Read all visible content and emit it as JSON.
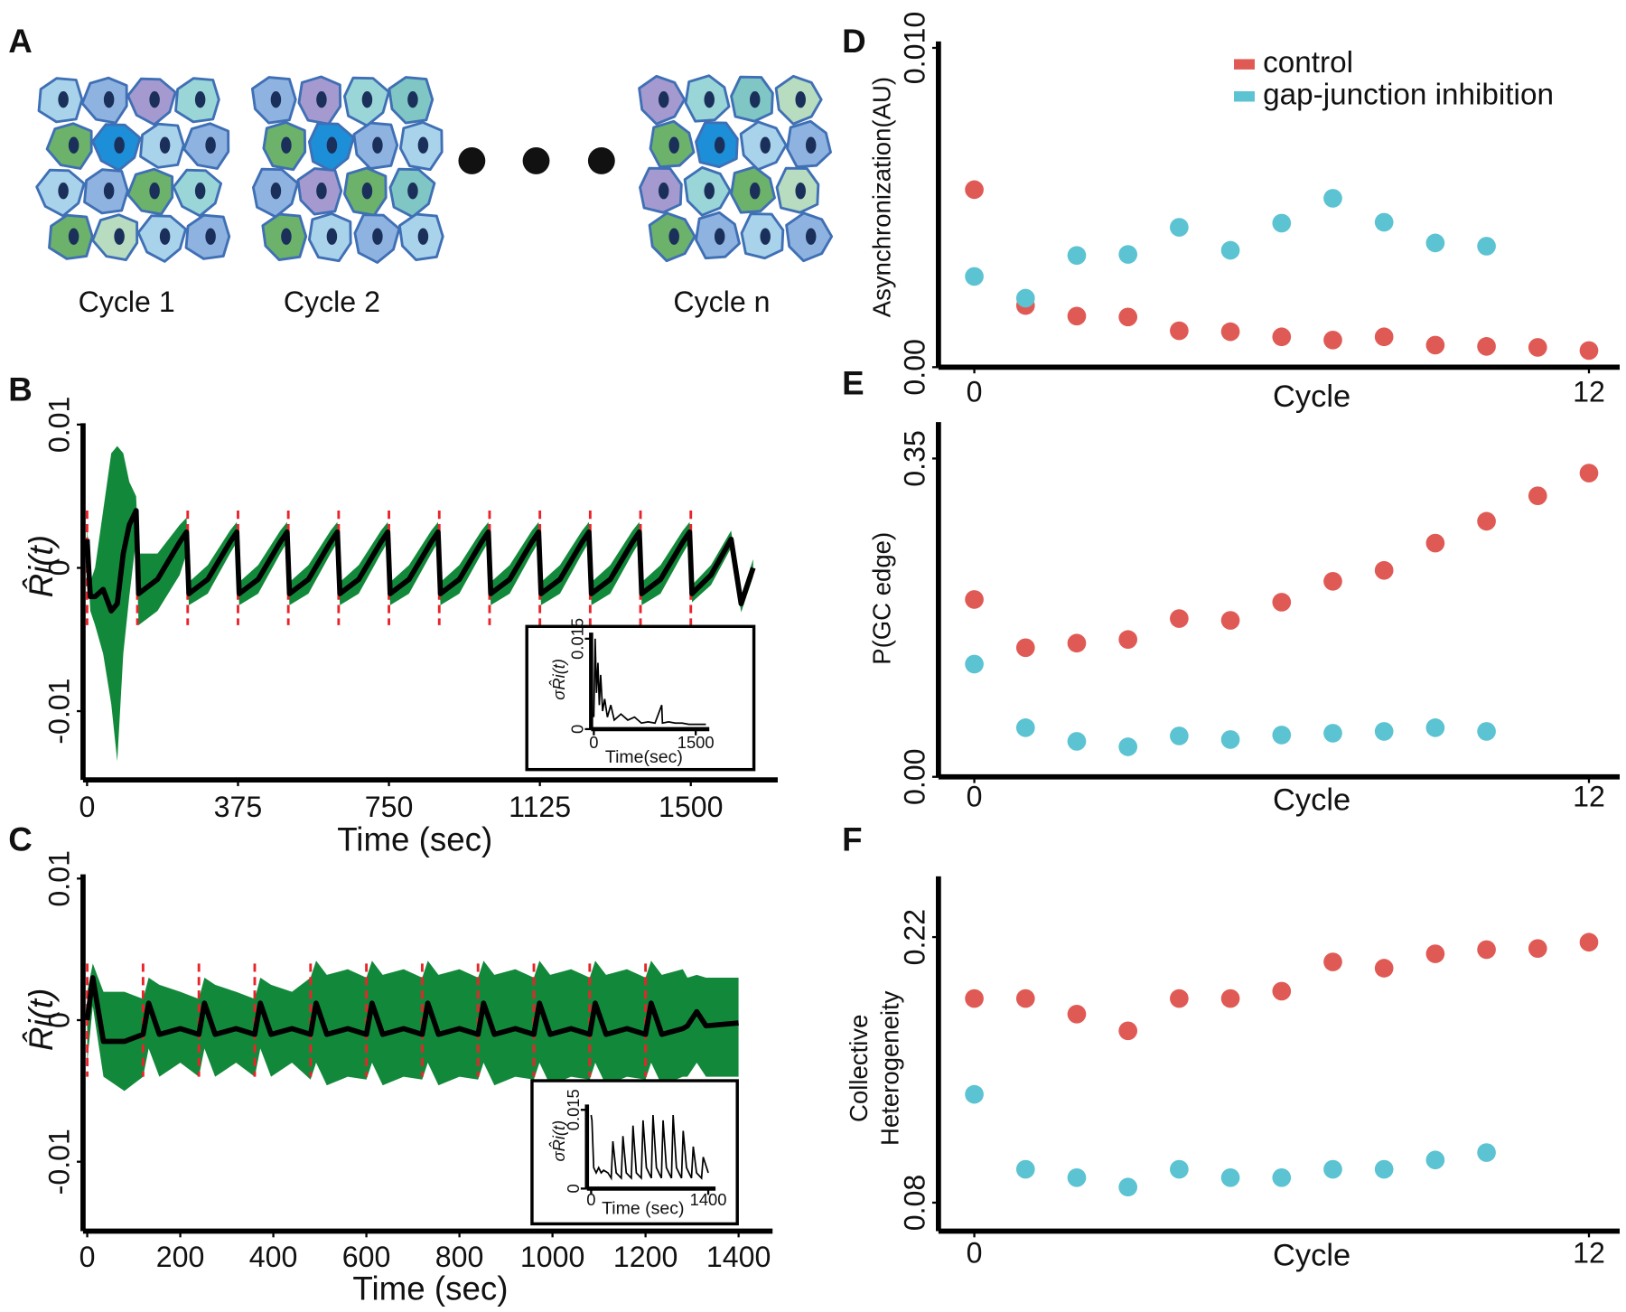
{
  "panel_a": {
    "label": "A",
    "cycle_labels": [
      "Cycle 1",
      "Cycle 2",
      "Cycle n"
    ]
  },
  "chart_data": [
    {
      "type": "line",
      "panel": "B",
      "ylabel": "R̂i(t)",
      "xlabel": "Time (sec)",
      "xlim": [
        -10,
        1716
      ],
      "ylim": [
        -0.0148,
        0.0101
      ],
      "xticks": [
        0,
        375,
        750,
        1125,
        1500
      ],
      "yticks": [
        -0.01,
        0,
        0.01
      ],
      "x": [
        0,
        8,
        20,
        40,
        60,
        75,
        90,
        105,
        122,
        128,
        175,
        230,
        247,
        253,
        300,
        355,
        372,
        378,
        425,
        480,
        497,
        503,
        550,
        605,
        622,
        628,
        675,
        730,
        747,
        753,
        800,
        855,
        872,
        878,
        925,
        980,
        997,
        1003,
        1050,
        1105,
        1122,
        1128,
        1175,
        1230,
        1247,
        1253,
        1300,
        1355,
        1372,
        1378,
        1425,
        1480,
        1497,
        1503,
        1550,
        1600,
        1625,
        1655
      ],
      "values": [
        0.002,
        -0.002,
        -0.002,
        -0.0015,
        -0.003,
        -0.0025,
        0.001,
        0.003,
        0.004,
        -0.0018,
        -0.0008,
        0.0018,
        0.0025,
        -0.0018,
        -0.0008,
        0.0018,
        0.0025,
        -0.0018,
        -0.0008,
        0.0018,
        0.0025,
        -0.0018,
        -0.0008,
        0.0018,
        0.0025,
        -0.0018,
        -0.0008,
        0.0018,
        0.0025,
        -0.0018,
        -0.0008,
        0.0018,
        0.0025,
        -0.0018,
        -0.0008,
        0.0018,
        0.0025,
        -0.0018,
        -0.0008,
        0.0018,
        0.0025,
        -0.0018,
        -0.0008,
        0.0018,
        0.0025,
        -0.0018,
        -0.0008,
        0.0018,
        0.0025,
        -0.0018,
        -0.0008,
        0.0018,
        0.0025,
        -0.0018,
        -0.0005,
        0.002,
        -0.0025,
        0
      ],
      "color": "#000000",
      "band": {
        "color": "#12893a",
        "upper": [
          0.003,
          -0.001,
          0,
          0.004,
          0.008,
          0.0085,
          0.008,
          0.006,
          0.005,
          0.001,
          0.001,
          0.003,
          0.0035,
          -0.001,
          0.0002,
          0.0026,
          0.0032,
          -0.001,
          0.0002,
          0.0026,
          0.0032,
          -0.001,
          0.0002,
          0.0026,
          0.0032,
          -0.001,
          0.0002,
          0.0026,
          0.0032,
          -0.001,
          0.0002,
          0.0026,
          0.0032,
          -0.001,
          0.0002,
          0.0026,
          0.0032,
          -0.001,
          0.0002,
          0.0026,
          0.0032,
          -0.001,
          0.0002,
          0.0026,
          0.0032,
          -0.001,
          0.0002,
          0.0026,
          0.0032,
          -0.001,
          0.0002,
          0.0026,
          0.0032,
          -0.0012,
          0.0002,
          0.0026,
          -0.0019,
          0.0006
        ],
        "lower": [
          0.001,
          -0.003,
          -0.004,
          -0.006,
          -0.0095,
          -0.0135,
          -0.006,
          -0.002,
          0.002,
          -0.004,
          -0.003,
          -0.0005,
          0.001,
          -0.0026,
          -0.0018,
          0.001,
          0.0018,
          -0.0026,
          -0.0018,
          0.001,
          0.0018,
          -0.0026,
          -0.0018,
          0.001,
          0.0018,
          -0.0026,
          -0.0018,
          0.001,
          0.0018,
          -0.0026,
          -0.0018,
          0.001,
          0.0018,
          -0.0026,
          -0.0018,
          0.001,
          0.0018,
          -0.0026,
          -0.0018,
          0.001,
          0.0018,
          -0.0026,
          -0.0018,
          0.001,
          0.0018,
          -0.0026,
          -0.0018,
          0.001,
          0.0018,
          -0.0026,
          -0.0018,
          0.001,
          0.0018,
          -0.0024,
          -0.0012,
          0.0014,
          -0.0031,
          -0.0006
        ]
      },
      "cycle_starts": [
        0,
        125,
        250,
        375,
        500,
        625,
        750,
        875,
        1000,
        1125,
        1250,
        1375,
        1500
      ],
      "cycle_color": "#e8242a",
      "inset": {
        "xlabel": "Time(sec)",
        "ylabel": "σR̂i(t)",
        "xlim": [
          -40,
          1700
        ],
        "ylim": [
          0,
          0.016
        ],
        "xticks": [
          0,
          1500
        ],
        "yticks": [
          0,
          0.015
        ],
        "x": [
          0,
          20,
          40,
          60,
          80,
          100,
          130,
          160,
          200,
          250,
          300,
          400,
          500,
          600,
          700,
          800,
          900,
          1000,
          1010,
          1100,
          1200,
          1300,
          1400,
          1500,
          1650
        ],
        "values": [
          0.002,
          0.015,
          0.006,
          0.011,
          0.004,
          0.009,
          0.003,
          0.005,
          0.002,
          0.004,
          0.0015,
          0.0025,
          0.0015,
          0.002,
          0.001,
          0.0012,
          0.001,
          0.004,
          0.001,
          0.0012,
          0.001,
          0.001,
          0.0008,
          0.0008,
          0.0008
        ]
      }
    },
    {
      "type": "line",
      "panel": "C",
      "ylabel": "R̂i(t)",
      "xlabel": "Time (sec)",
      "xlim": [
        -9,
        1473
      ],
      "ylim": [
        -0.0149,
        0.0103
      ],
      "xticks": [
        0,
        200,
        400,
        600,
        800,
        1000,
        1200,
        1400
      ],
      "yticks": [
        -0.01,
        0,
        0.01
      ],
      "x": [
        0,
        12,
        35,
        80,
        120,
        132,
        155,
        200,
        240,
        252,
        275,
        320,
        360,
        372,
        395,
        440,
        480,
        492,
        515,
        560,
        600,
        612,
        635,
        680,
        720,
        732,
        755,
        800,
        840,
        852,
        875,
        920,
        960,
        972,
        995,
        1040,
        1080,
        1092,
        1115,
        1160,
        1200,
        1212,
        1235,
        1280,
        1290,
        1310,
        1330,
        1400
      ],
      "values": [
        0,
        0.003,
        -0.0015,
        -0.0015,
        -0.001,
        0.0012,
        -0.001,
        -0.0006,
        -0.001,
        0.0012,
        -0.001,
        -0.0006,
        -0.001,
        0.0012,
        -0.001,
        -0.0006,
        -0.001,
        0.0012,
        -0.001,
        -0.0006,
        -0.001,
        0.0012,
        -0.001,
        -0.0006,
        -0.001,
        0.0012,
        -0.001,
        -0.0006,
        -0.001,
        0.0012,
        -0.001,
        -0.0006,
        -0.001,
        0.0012,
        -0.001,
        -0.0006,
        -0.001,
        0.0012,
        -0.001,
        -0.0006,
        -0.001,
        0.0012,
        -0.001,
        -0.0006,
        -0.0004,
        0.0006,
        -0.0004,
        -0.0002
      ],
      "color": "#000000",
      "band": {
        "color": "#12893a",
        "upper": [
          0.002,
          0.004,
          0.002,
          0.002,
          0.0015,
          0.003,
          0.0025,
          0.002,
          0.0015,
          0.003,
          0.0025,
          0.002,
          0.0015,
          0.003,
          0.0025,
          0.002,
          0.003,
          0.0042,
          0.0032,
          0.0036,
          0.003,
          0.0042,
          0.0032,
          0.0036,
          0.003,
          0.0042,
          0.0032,
          0.0036,
          0.003,
          0.0042,
          0.0032,
          0.0036,
          0.003,
          0.0042,
          0.0032,
          0.0036,
          0.003,
          0.0042,
          0.0032,
          0.0036,
          0.003,
          0.0042,
          0.0032,
          0.0036,
          0.003,
          0.0032,
          0.003,
          0.003
        ],
        "lower": [
          -0.003,
          0.001,
          -0.004,
          -0.005,
          -0.004,
          -0.002,
          -0.004,
          -0.003,
          -0.004,
          -0.002,
          -0.004,
          -0.003,
          -0.004,
          -0.002,
          -0.004,
          -0.003,
          -0.0042,
          -0.003,
          -0.0046,
          -0.004,
          -0.0042,
          -0.003,
          -0.0046,
          -0.004,
          -0.0042,
          -0.003,
          -0.0046,
          -0.004,
          -0.0042,
          -0.003,
          -0.0046,
          -0.004,
          -0.0042,
          -0.003,
          -0.0046,
          -0.004,
          -0.0042,
          -0.003,
          -0.0046,
          -0.004,
          -0.0042,
          -0.003,
          -0.0046,
          -0.004,
          -0.004,
          -0.003,
          -0.004,
          -0.004
        ]
      },
      "cycle_starts": [
        0,
        120,
        240,
        360,
        480,
        600,
        720,
        840,
        960,
        1080,
        1200
      ],
      "cycle_color": "#e8242a",
      "inset": {
        "xlabel": "Time (sec)",
        "ylabel": "σR̂i(t)",
        "xlim": [
          -50,
          1487
        ],
        "ylim": [
          0,
          0.016
        ],
        "xticks": [
          0,
          1400
        ],
        "yticks": [
          0,
          0.015
        ],
        "x": [
          0,
          10,
          30,
          60,
          90,
          120,
          150,
          200,
          240,
          260,
          300,
          360,
          380,
          420,
          480,
          500,
          540,
          600,
          620,
          660,
          720,
          740,
          780,
          840,
          860,
          900,
          960,
          980,
          1020,
          1080,
          1100,
          1140,
          1200,
          1220,
          1260,
          1320,
          1340,
          1400
        ],
        "values": [
          0.014,
          0.013,
          0.004,
          0.003,
          0.004,
          0.003,
          0.0035,
          0.003,
          0.002,
          0.009,
          0.003,
          0.002,
          0.01,
          0.003,
          0.002,
          0.012,
          0.003,
          0.002,
          0.013,
          0.004,
          0.002,
          0.014,
          0.004,
          0.002,
          0.013,
          0.004,
          0.002,
          0.014,
          0.004,
          0.002,
          0.011,
          0.004,
          0.002,
          0.008,
          0.003,
          0.002,
          0.006,
          0.003
        ]
      }
    },
    {
      "type": "scatter",
      "panel": "D",
      "ylabel": "Asynchronization(AU)",
      "xlabel": "Cycle",
      "xlim": [
        -0.7,
        12.6
      ],
      "ylim": [
        0,
        0.0102
      ],
      "xticks": [
        0,
        12
      ],
      "yticks": [
        {
          "value": 0,
          "label": "0.00"
        },
        {
          "value": 0.01,
          "label": "0.010"
        }
      ],
      "legend": "top-right",
      "series": [
        {
          "name": "control",
          "color": "#e05a55",
          "x": [
            0,
            1,
            2,
            3,
            4,
            5,
            6,
            7,
            8,
            9,
            10,
            11,
            12
          ],
          "values": [
            0.00556,
            0.00193,
            0.0016,
            0.00157,
            0.00114,
            0.00111,
            0.00095,
            0.00085,
            0.00095,
            0.00069,
            0.00065,
            0.00062,
            0.00052
          ]
        },
        {
          "name": "gap-junction inhibition",
          "color": "#5bc3d2",
          "x": [
            0,
            1,
            2,
            3,
            4,
            5,
            6,
            7,
            8,
            9,
            10
          ],
          "values": [
            0.00284,
            0.00216,
            0.0035,
            0.00353,
            0.00438,
            0.00366,
            0.00451,
            0.00529,
            0.00454,
            0.00389,
            0.00379
          ]
        }
      ]
    },
    {
      "type": "scatter",
      "panel": "E",
      "ylabel": "P(GC edge)",
      "xlabel": "Cycle",
      "xlim": [
        -0.7,
        12.6
      ],
      "ylim": [
        0,
        0.39
      ],
      "xticks": [
        0,
        12
      ],
      "yticks": [
        {
          "value": 0,
          "label": "0.00"
        },
        0.35
      ],
      "series": [
        {
          "color": "#e05a55",
          "x": [
            0,
            1,
            2,
            3,
            4,
            5,
            6,
            7,
            8,
            9,
            10,
            11,
            12
          ],
          "values": [
            0.195,
            0.142,
            0.147,
            0.151,
            0.174,
            0.172,
            0.192,
            0.215,
            0.227,
            0.257,
            0.281,
            0.309,
            0.334
          ]
        },
        {
          "color": "#5bc3d2",
          "x": [
            0,
            1,
            2,
            3,
            4,
            5,
            6,
            7,
            8,
            9,
            10
          ],
          "values": [
            0.124,
            0.054,
            0.039,
            0.033,
            0.045,
            0.041,
            0.046,
            0.048,
            0.05,
            0.054,
            0.05
          ]
        }
      ]
    },
    {
      "type": "scatter",
      "panel": "F",
      "ylabel": [
        "Collective",
        "Heterogeneity"
      ],
      "xlabel": "Cycle",
      "xlim": [
        -0.7,
        12.6
      ],
      "ylim": [
        0.065,
        0.252
      ],
      "xticks": [
        0,
        12
      ],
      "yticks": [
        0.08,
        0.22
      ],
      "series": [
        {
          "color": "#e05a55",
          "x": [
            0,
            1,
            2,
            3,
            4,
            5,
            6,
            7,
            8,
            9,
            10,
            11,
            12
          ],
          "values": [
            0.1876,
            0.1876,
            0.1794,
            0.1706,
            0.1876,
            0.1876,
            0.1915,
            0.2069,
            0.2036,
            0.2112,
            0.2134,
            0.214,
            0.2173
          ]
        },
        {
          "color": "#5bc3d2",
          "x": [
            0,
            1,
            2,
            3,
            4,
            5,
            6,
            7,
            8,
            9,
            10
          ],
          "values": [
            0.1371,
            0.0976,
            0.0932,
            0.0882,
            0.0976,
            0.0932,
            0.0932,
            0.0976,
            0.0976,
            0.1025,
            0.1064
          ]
        }
      ]
    }
  ]
}
